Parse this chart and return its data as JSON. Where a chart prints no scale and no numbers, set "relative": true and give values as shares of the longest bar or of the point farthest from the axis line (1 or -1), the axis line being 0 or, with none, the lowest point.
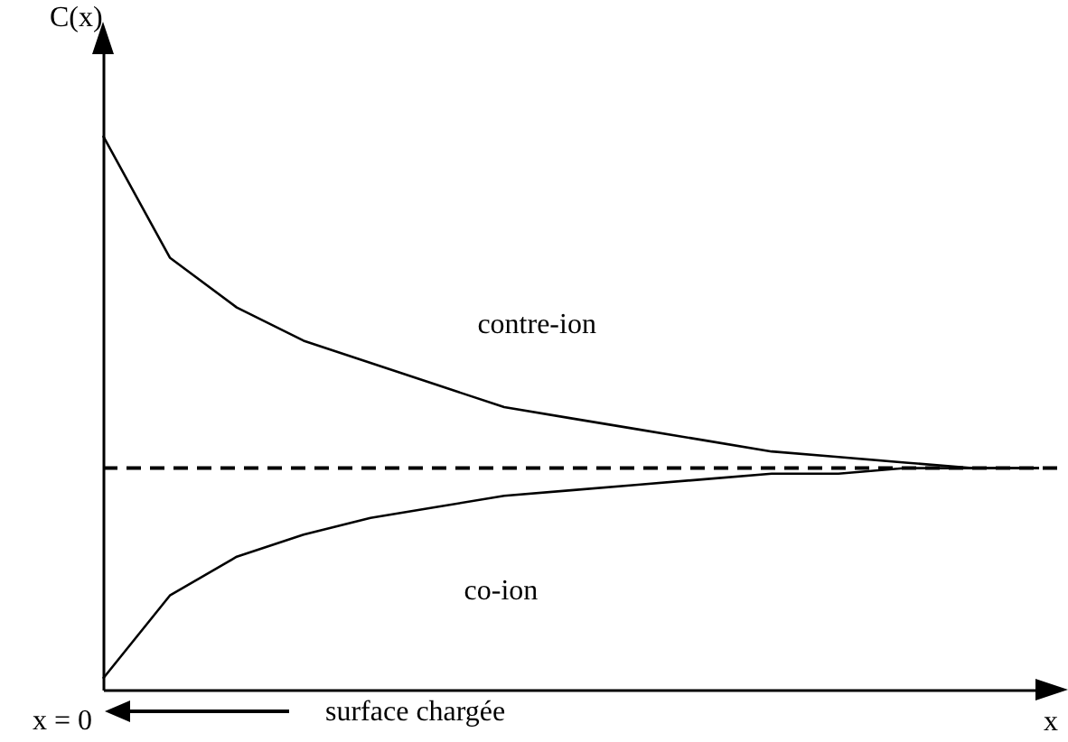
{
  "chart_data": {
    "type": "line",
    "relative": true,
    "xlabel": "x",
    "ylabel": "C(x)",
    "categories": [
      null,
      null,
      null,
      null,
      null,
      null,
      null,
      null,
      null,
      null,
      null,
      null,
      null,
      null,
      null
    ],
    "series": [
      {
        "name": "contre-ion",
        "color": "#000000",
        "line_style": "solid",
        "values": [
          1,
          0.78,
          0.69,
          0.63,
          0.59,
          0.55,
          0.51,
          0.49,
          0.47,
          0.45,
          0.43,
          0.42,
          0.41,
          0.4,
          0.4
        ]
      },
      {
        "name": "co-ion",
        "color": "#000000",
        "line_style": "solid",
        "values": [
          0.02,
          0.17,
          0.24,
          0.28,
          0.31,
          0.33,
          0.35,
          0.36,
          0.37,
          0.38,
          0.39,
          0.39,
          0.4,
          0.4,
          0.4
        ]
      }
    ],
    "ref_lines": [
      {
        "axis": "y",
        "value": 0.4,
        "color": "#000000",
        "line_style": "dashed"
      }
    ],
    "marker": "none",
    "annotations": [
      "x = 0",
      "surface chargée"
    ]
  }
}
